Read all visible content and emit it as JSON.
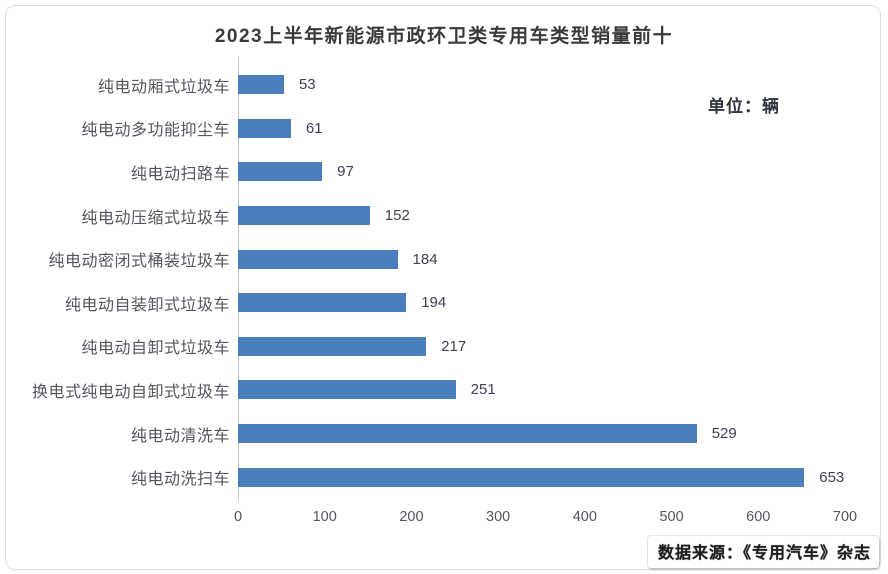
{
  "page": {
    "source_label": "数据来源：《专用汽车》杂志"
  },
  "chart_data": {
    "type": "bar",
    "orientation": "horizontal",
    "title": "2023上半年新能源市政环卫类专用车类型销量前十",
    "unit_label": "单位：辆",
    "categories": [
      "纯电动厢式垃圾车",
      "纯电动多功能抑尘车",
      "纯电动扫路车",
      "纯电动压缩式垃圾车",
      "纯电动密闭式桶装垃圾车",
      "纯电动自装卸式垃圾车",
      "纯电动自卸式垃圾车",
      "换电式纯电动自卸式垃圾车",
      "纯电动清洗车",
      "纯电动洗扫车"
    ],
    "values": [
      53,
      61,
      97,
      152,
      184,
      194,
      217,
      251,
      529,
      653
    ],
    "xlabel": "",
    "ylabel": "",
    "xlim": [
      0,
      700
    ],
    "x_ticks": [
      0,
      100,
      200,
      300,
      400,
      500,
      600,
      700
    ],
    "bar_color": "#4a7ebc",
    "grid": false,
    "legend": false,
    "value_labels": true
  }
}
